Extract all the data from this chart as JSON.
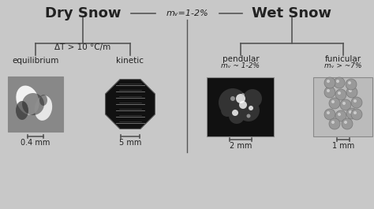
{
  "background_color": "#d0d0d0",
  "title_dry": "Dry Snow",
  "title_wet": "Wet Snow",
  "separator_label": "mᵥ=1-2%",
  "dry_bracket_label": "ΔT > 10 °C/m",
  "label_equilibrium": "equilibrium",
  "label_kinetic": "kinetic",
  "label_pendular": "pendular",
  "label_pendular_sub": "mᵥ ~ 1-2%",
  "label_funicular": "funicular",
  "label_funicular_sub": "mᵥ > ~7%",
  "scale_eq": "0.4 mm",
  "scale_kin": "5 mm",
  "scale_pen": "2 mm",
  "scale_fun": "1 mm",
  "line_color": "#555555",
  "text_color": "#222222",
  "panel_bg": "#c8c8c8"
}
